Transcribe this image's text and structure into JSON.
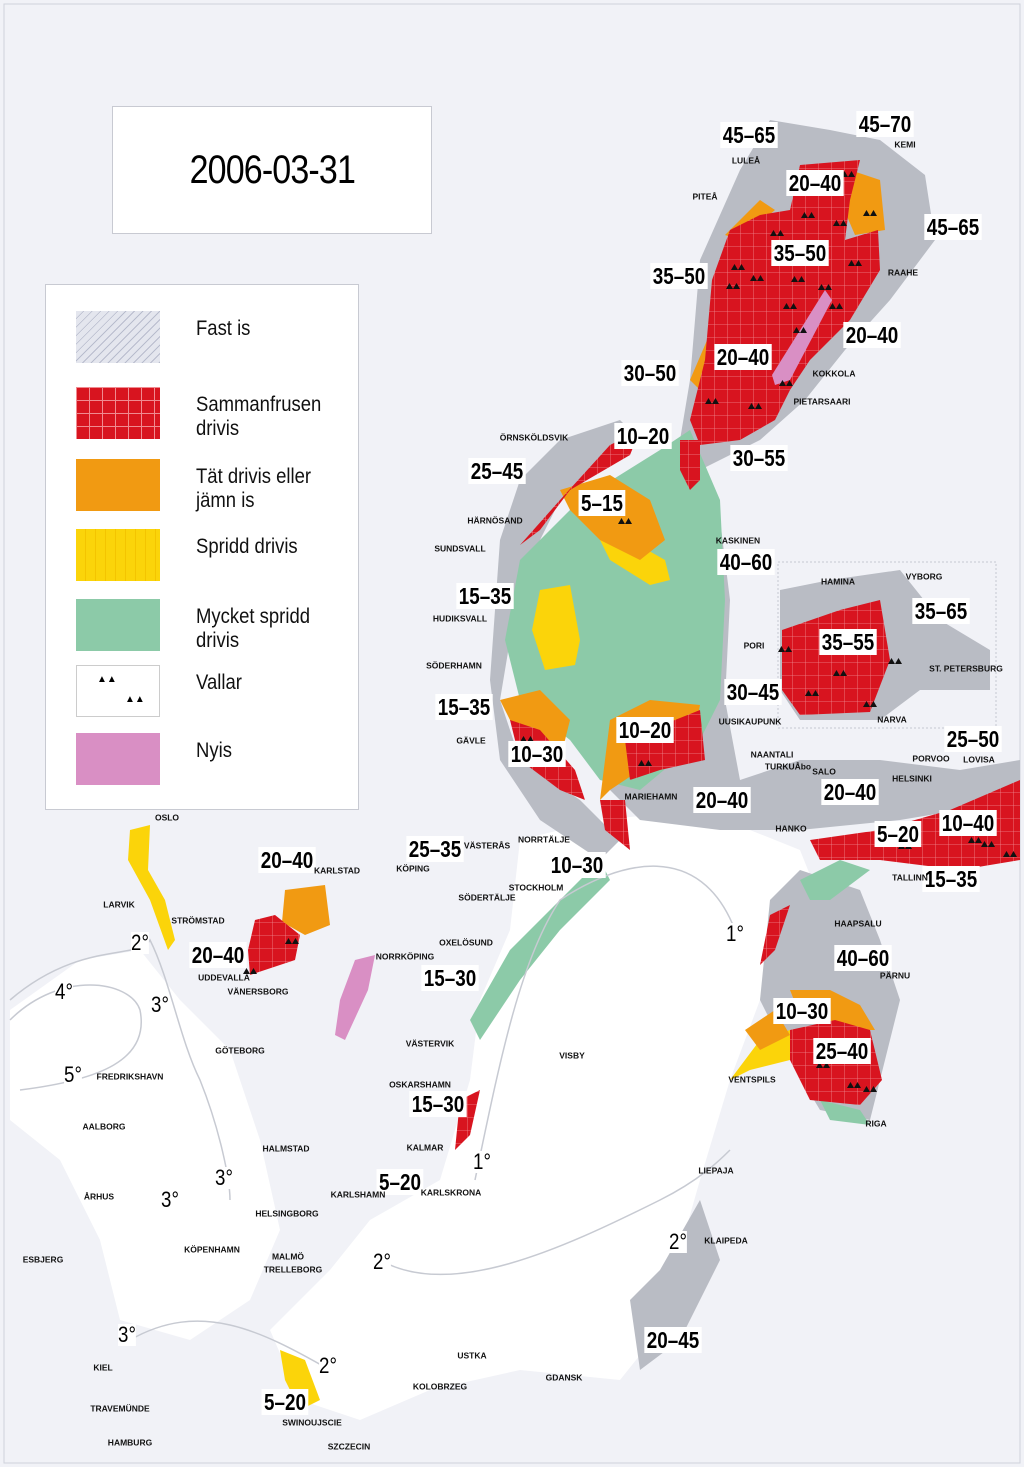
{
  "date": "2006-03-31",
  "colors": {
    "fast_ice": "#b9bcc4",
    "compact_drift": "#d8141f",
    "close_drift": "#f19a12",
    "open_drift": "#fbd40a",
    "very_open_drift": "#8ccaa8",
    "new_ice": "#d98fc4",
    "open_water": "#ffffff",
    "background": "#f1f2f7"
  },
  "legend": [
    {
      "label": "Fast is",
      "color": "#dcdeea",
      "pattern": "hatched"
    },
    {
      "label": "Sammanfrusen drivis",
      "color": "#d8141f",
      "pattern": "grid"
    },
    {
      "label": "Tät drivis eller jämn is",
      "color": "#f19a12",
      "pattern": "solid"
    },
    {
      "label": "Spridd drivis",
      "color": "#fbd40a",
      "pattern": "dashes"
    },
    {
      "label": "Mycket spridd drivis",
      "color": "#8ccaa8",
      "pattern": "solid"
    },
    {
      "label": "Vallar",
      "color": "#ffffff",
      "pattern": "ridges-icon"
    },
    {
      "label": "Nyis",
      "color": "#d98fc4",
      "pattern": "solid"
    }
  ],
  "thickness_cm": [
    "45–65",
    "45–70",
    "20–40",
    "45–65",
    "35–50",
    "35–50",
    "20–40",
    "20–40",
    "30–50",
    "10–20",
    "30–55",
    "25–45",
    "5–15",
    "40–60",
    "35–65",
    "15–35",
    "35–55",
    "30–45",
    "15–35",
    "10–20",
    "10–30",
    "25–50",
    "20–40",
    "20–40",
    "10–40",
    "5–20",
    "25–35",
    "20–40",
    "10–30",
    "15–35",
    "20–40",
    "40–60",
    "15–30",
    "10–30",
    "25–40",
    "15–30",
    "5–20",
    "20–45",
    "5–20"
  ],
  "water_temperatures": [
    "2°",
    "4°",
    "3°",
    "5°",
    "1°",
    "3°",
    "3°",
    "1°",
    "2°",
    "2°",
    "3°",
    "2°"
  ],
  "places": [
    "LULEÅ",
    "PITEÅ",
    "KEMI",
    "RAAHE",
    "KOKKOLA",
    "PIETARSAARI",
    "ÖRNSKÖLDSVIK",
    "HÄRNÖSAND",
    "SUNDSVALL",
    "KASKINEN",
    "HUDIKSVALL",
    "SÖDERHAMN",
    "PORI",
    "HAMINA",
    "VYBORG",
    "ST. PETERSBURG",
    "NARVA",
    "UUSIKAUPUNK",
    "GÄVLE",
    "NAANTALI",
    "TURKUÅbo",
    "SALO",
    "PORVOO",
    "LOVISA",
    "HELSINKI",
    "MARIEHAMN",
    "HANKO",
    "TALLINN",
    "NORRTÄLJE",
    "KÖPING",
    "VÄSTERÅS",
    "STOCKHOLM",
    "SÖDERTÄLJE",
    "OSLO",
    "KARLSTAD",
    "LARVIK",
    "STRÖMSTAD",
    "HAAPSALU",
    "PÄRNU",
    "OXELÖSUND",
    "NORRKÖPING",
    "UDDEVALLA",
    "VÄNERSBORG",
    "GÖTEBORG",
    "VÄSTERVIK",
    "VISBY",
    "FREDRIKSHAVN",
    "VENTSPILS",
    "OSKARSHAMN",
    "RIGA",
    "AALBORG",
    "HALMSTAD",
    "KALMAR",
    "LIEPAJA",
    "ÅRHUS",
    "KARLSHAMN",
    "KARLSKRONA",
    "HELSINGBORG",
    "KLAIPEDA",
    "KÖPENHAMN",
    "MALMÖ",
    "TRELLEBORG",
    "ESBJERG",
    "USTKA",
    "KIEL",
    "GDANSK",
    "KOLOBRZEG",
    "TRAVEMÜNDE",
    "SWINOUJSCIE",
    "HAMBURG",
    "SZCZECIN"
  ]
}
